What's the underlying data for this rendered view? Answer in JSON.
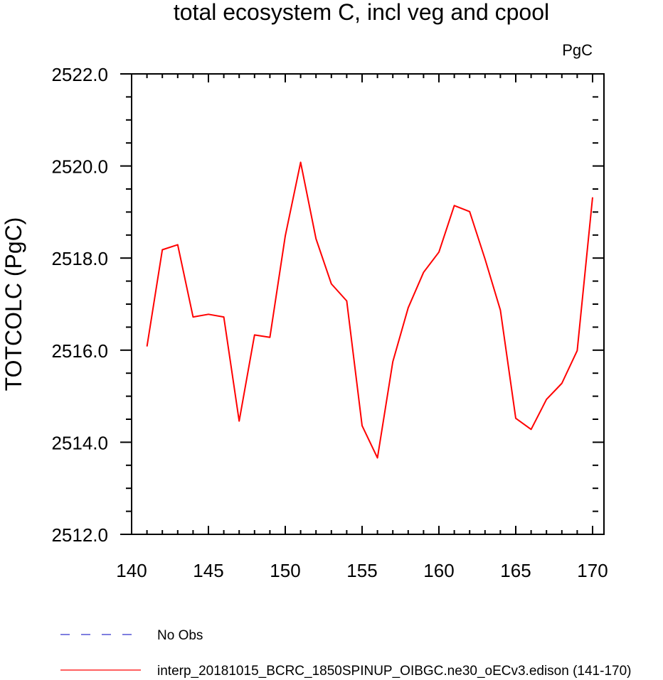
{
  "chart_data": {
    "type": "line",
    "title": "total ecosystem C, incl veg and cpool",
    "units": "PgC",
    "xlabel": "",
    "ylabel": "TOTCOLC  (PgC)",
    "xlim": [
      140,
      170
    ],
    "ylim": [
      2512.0,
      2522.0
    ],
    "xticks": [
      "140",
      "145",
      "150",
      "155",
      "160",
      "165",
      "170"
    ],
    "yticks": [
      "2512.0",
      "2514.0",
      "2516.0",
      "2518.0",
      "2520.0",
      "2522.0"
    ],
    "grid": false,
    "legend_position": "bottom-left",
    "series": [
      {
        "name": "interp_20181015_BCRC_1850SPINUP_OIBGC.ne30_oECv3.edison (141-170)",
        "color": "#ff0000",
        "style": "solid",
        "x": [
          141,
          142,
          143,
          144,
          145,
          146,
          147,
          148,
          149,
          150,
          151,
          152,
          153,
          154,
          155,
          156,
          157,
          158,
          159,
          160,
          161,
          162,
          163,
          164,
          165,
          166,
          167,
          168,
          169,
          170
        ],
        "values": [
          2516.08,
          2518.18,
          2518.29,
          2516.72,
          2516.78,
          2516.72,
          2514.46,
          2516.33,
          2516.28,
          2518.48,
          2520.08,
          2518.42,
          2517.44,
          2517.07,
          2514.36,
          2513.66,
          2515.75,
          2516.92,
          2517.69,
          2518.13,
          2519.14,
          2519.01,
          2517.98,
          2516.87,
          2514.52,
          2514.28,
          2514.93,
          2515.28,
          2515.99,
          2519.32
        ]
      },
      {
        "name": "No Obs",
        "color": "#3333cc",
        "style": "dashed",
        "x": [],
        "values": []
      }
    ]
  }
}
